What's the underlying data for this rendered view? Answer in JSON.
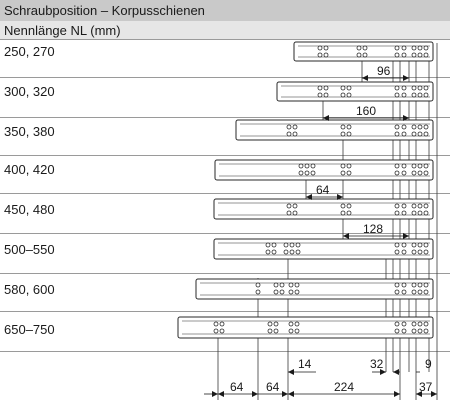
{
  "title": "Schraubposition – Korpusschienen",
  "subtitle": "Nennlänge NL (mm)",
  "rows": [
    {
      "label": "250, 270"
    },
    {
      "label": "300, 320"
    },
    {
      "label": "350, 380"
    },
    {
      "label": "400, 420"
    },
    {
      "label": "450, 480"
    },
    {
      "label": "500–550"
    },
    {
      "label": "580, 600"
    },
    {
      "label": "650–750"
    }
  ],
  "inner_dimensions": {
    "d96": "96",
    "d160": "160",
    "d64": "64",
    "d128": "128"
  },
  "bottom_dimensions": {
    "d14": "14",
    "d32": "32",
    "d9": "9",
    "b64a": "64",
    "b64b": "64",
    "b224": "224",
    "b37": "37"
  }
}
